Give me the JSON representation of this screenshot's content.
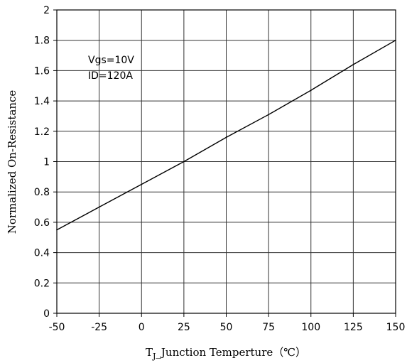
{
  "chart_data": {
    "type": "line",
    "xlabel": {
      "main": "T",
      "sub": "J",
      "rest": "_Junction Temperture（℃）"
    },
    "ylabel": "Normalized On-Resistance",
    "xlim": [
      -50,
      150
    ],
    "ylim": [
      0,
      2
    ],
    "x_ticks": [
      -50,
      -25,
      0,
      25,
      50,
      75,
      100,
      125,
      150
    ],
    "y_ticks": [
      0,
      0.2,
      0.4,
      0.6,
      0.8,
      1,
      1.2,
      1.4,
      1.6,
      1.8,
      2
    ],
    "x_tick_labels": [
      "-50",
      "-25",
      "0",
      "25",
      "50",
      "75",
      "100",
      "125",
      "150"
    ],
    "y_tick_labels": [
      "0",
      "0.2",
      "0.4",
      "0.6",
      "0.8",
      "1",
      "1.2",
      "1.4",
      "1.6",
      "1.8",
      "2"
    ],
    "grid": true,
    "annotations": [
      "Vgs=10V",
      "ID=120A"
    ],
    "series": [
      {
        "x": [
          -50,
          -25,
          0,
          25,
          50,
          75,
          100,
          125,
          150
        ],
        "y": [
          0.55,
          0.7,
          0.85,
          1.0,
          1.16,
          1.31,
          1.47,
          1.64,
          1.8
        ]
      }
    ]
  }
}
